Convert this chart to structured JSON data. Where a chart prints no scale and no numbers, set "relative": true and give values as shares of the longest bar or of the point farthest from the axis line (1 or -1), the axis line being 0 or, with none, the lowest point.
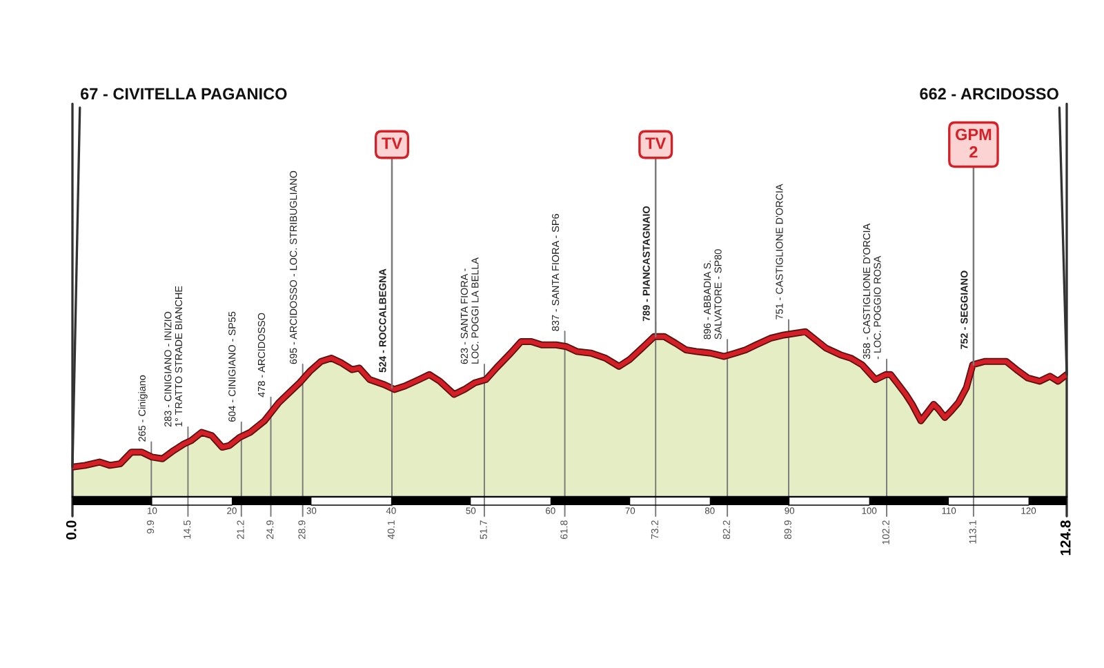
{
  "chart_data": {
    "type": "area",
    "relative": true,
    "x": [
      0,
      1.6,
      3.4,
      4.7,
      6.0,
      7.4,
      8.7,
      10.0,
      11.3,
      12.7,
      14.0,
      14.9,
      16.2,
      17.5,
      18.8,
      19.7,
      21.0,
      22.3,
      24.1,
      25.9,
      27.2,
      28.5,
      29.8,
      31.2,
      32.5,
      33.8,
      35.1,
      36.0,
      37.3,
      39.1,
      40.4,
      41.7,
      43.5,
      44.8,
      46.1,
      47.9,
      49.2,
      50.5,
      51.9,
      53.2,
      55.0,
      56.3,
      57.6,
      58.9,
      60.7,
      62.0,
      63.3,
      65.1,
      66.9,
      68.6,
      69.9,
      71.7,
      73.0,
      74.3,
      75.7,
      77.0,
      78.3,
      80.1,
      81.8,
      83.2,
      84.5,
      85.8,
      87.6,
      89.3,
      90.7,
      92.0,
      93.3,
      94.6,
      96.4,
      97.7,
      99.1,
      100.8,
      102.1,
      102.7,
      103.5,
      104.6,
      105.4,
      106.5,
      107.3,
      108.1,
      108.7,
      109.5,
      110.3,
      111.2,
      112.2,
      113.0,
      114.5,
      117.2,
      118.5,
      119.9,
      121.4,
      122.7,
      123.7,
      124.8
    ],
    "series": [
      {
        "color": "#e4edc3",
        "values": [
          0.18,
          0.19,
          0.21,
          0.19,
          0.2,
          0.27,
          0.27,
          0.24,
          0.23,
          0.28,
          0.32,
          0.34,
          0.39,
          0.37,
          0.3,
          0.31,
          0.36,
          0.39,
          0.46,
          0.57,
          0.63,
          0.69,
          0.76,
          0.82,
          0.84,
          0.81,
          0.77,
          0.78,
          0.71,
          0.68,
          0.65,
          0.67,
          0.71,
          0.74,
          0.7,
          0.62,
          0.65,
          0.69,
          0.71,
          0.78,
          0.87,
          0.94,
          0.94,
          0.92,
          0.92,
          0.91,
          0.88,
          0.87,
          0.84,
          0.79,
          0.83,
          0.91,
          0.97,
          0.97,
          0.93,
          0.89,
          0.88,
          0.87,
          0.85,
          0.87,
          0.89,
          0.92,
          0.96,
          0.98,
          0.99,
          1.0,
          0.95,
          0.9,
          0.86,
          0.84,
          0.8,
          0.71,
          0.74,
          0.74,
          0.69,
          0.62,
          0.56,
          0.46,
          0.51,
          0.56,
          0.53,
          0.48,
          0.52,
          0.57,
          0.66,
          0.8,
          0.82,
          0.82,
          0.77,
          0.72,
          0.7,
          0.73,
          0.7,
          0.74
        ]
      },
      {
        "type": "line",
        "color": "#d41f26",
        "values": [
          0.18,
          0.19,
          0.21,
          0.19,
          0.2,
          0.27,
          0.27,
          0.24,
          0.23,
          0.28,
          0.32,
          0.34,
          0.39,
          0.37,
          0.3,
          0.31,
          0.36,
          0.39,
          0.46,
          0.57,
          0.63,
          0.69,
          0.76,
          0.82,
          0.84,
          0.81,
          0.77,
          0.78,
          0.71,
          0.68,
          0.65,
          0.67,
          0.71,
          0.74,
          0.7,
          0.62,
          0.65,
          0.69,
          0.71,
          0.78,
          0.87,
          0.94,
          0.94,
          0.92,
          0.92,
          0.91,
          0.88,
          0.87,
          0.84,
          0.79,
          0.83,
          0.91,
          0.97,
          0.97,
          0.93,
          0.89,
          0.88,
          0.87,
          0.85,
          0.87,
          0.89,
          0.92,
          0.96,
          0.98,
          0.99,
          1.0,
          0.95,
          0.9,
          0.86,
          0.84,
          0.8,
          0.71,
          0.74,
          0.74,
          0.69,
          0.62,
          0.56,
          0.46,
          0.51,
          0.56,
          0.53,
          0.48,
          0.52,
          0.57,
          0.66,
          0.8,
          0.82,
          0.82,
          0.77,
          0.72,
          0.7,
          0.73,
          0.7,
          0.74
        ]
      }
    ],
    "xlim": [
      0,
      124.8
    ],
    "xticks": [
      10,
      20,
      30,
      40,
      50,
      60,
      70,
      80,
      90,
      100,
      110,
      120
    ],
    "ref_lines": [
      {
        "axis": "x",
        "value": 0,
        "label": "0.0",
        "color": "#333333"
      },
      {
        "axis": "x",
        "value": 9.9,
        "label": "9.9",
        "color": "#7a7a7a"
      },
      {
        "axis": "x",
        "value": 14.5,
        "label": "14.5",
        "color": "#7a7a7a"
      },
      {
        "axis": "x",
        "value": 21.2,
        "label": "21.2",
        "color": "#7a7a7a"
      },
      {
        "axis": "x",
        "value": 24.9,
        "label": "24.9",
        "color": "#7a7a7a"
      },
      {
        "axis": "x",
        "value": 28.9,
        "label": "28.9",
        "color": "#7a7a7a"
      },
      {
        "axis": "x",
        "value": 40.1,
        "label": "40.1",
        "color": "#7a7a7a"
      },
      {
        "axis": "x",
        "value": 51.7,
        "label": "51.7",
        "color": "#7a7a7a"
      },
      {
        "axis": "x",
        "value": 61.8,
        "label": "61.8",
        "color": "#7a7a7a"
      },
      {
        "axis": "x",
        "value": 73.2,
        "label": "73.2",
        "color": "#7a7a7a"
      },
      {
        "axis": "x",
        "value": 82.2,
        "label": "82.2",
        "color": "#7a7a7a"
      },
      {
        "axis": "x",
        "value": 89.9,
        "label": "89.9",
        "color": "#7a7a7a"
      },
      {
        "axis": "x",
        "value": 102.2,
        "label": "102.2",
        "color": "#7a7a7a"
      },
      {
        "axis": "x",
        "value": 113.1,
        "label": "113.1",
        "color": "#7a7a7a"
      },
      {
        "axis": "x",
        "value": 124.8,
        "label": "124.8",
        "color": "#333333"
      }
    ],
    "annotations": [
      {
        "text": "67 - CIVITELLA PAGANICO",
        "x": 0,
        "y": 0.18
      },
      {
        "text": "265 - Cinigiano",
        "x": 9.9,
        "y": 0.24
      },
      {
        "text": "283 - CINIGIANO - INIZIO\n1° TRATTO STRADE BIANCHE",
        "x": 14.5,
        "y": 0.33
      },
      {
        "text": "604 - CINIGIANO - SP55",
        "x": 21.2,
        "y": 0.36
      },
      {
        "text": "478 - ARCIDOSSO",
        "x": 24.9,
        "y": 0.51
      },
      {
        "text": "695 - ARCIDOSSO - LOC. STRIBUGLIANO",
        "x": 28.9,
        "y": 0.71
      },
      {
        "text": "524 - ROCCALBEGNA",
        "x": 40.1,
        "y": 0.66
      },
      {
        "text": "TV",
        "x": 40.1,
        "y": 0.66
      },
      {
        "text": "623 - SANTA FIORA -\nLOC. POGGI LA BELLA",
        "x": 51.7,
        "y": 0.71
      },
      {
        "text": "837 - SANTA FIORA - SP6",
        "x": 61.8,
        "y": 0.91
      },
      {
        "text": "789 - PIANCASTAGNAIO",
        "x": 73.2,
        "y": 0.97
      },
      {
        "text": "TV",
        "x": 73.2,
        "y": 0.97
      },
      {
        "text": "896 - ABBADIA S.\nSALVATORE - SP80",
        "x": 82.2,
        "y": 0.86
      },
      {
        "text": "751 - CASTIGLIONE D'ORCIA",
        "x": 89.9,
        "y": 0.98
      },
      {
        "text": "358 - CASTIGLIONE D'ORCIA\n- LOC. POGGIO ROSA",
        "x": 102.2,
        "y": 0.74
      },
      {
        "text": "752 - SEGGIANO",
        "x": 113.1,
        "y": 0.8
      },
      {
        "text": "GPM\n2",
        "x": 113.1,
        "y": 0.8
      },
      {
        "text": "662 - ARCIDOSSO",
        "x": 124.8,
        "y": 0.74
      }
    ]
  }
}
